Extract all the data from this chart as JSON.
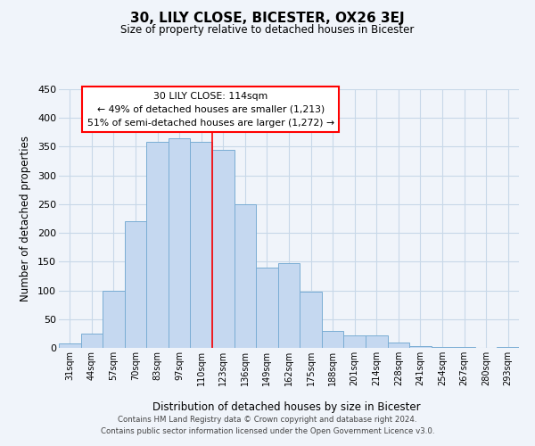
{
  "title": "30, LILY CLOSE, BICESTER, OX26 3EJ",
  "subtitle": "Size of property relative to detached houses in Bicester",
  "xlabel": "Distribution of detached houses by size in Bicester",
  "ylabel": "Number of detached properties",
  "bin_labels": [
    "31sqm",
    "44sqm",
    "57sqm",
    "70sqm",
    "83sqm",
    "97sqm",
    "110sqm",
    "123sqm",
    "136sqm",
    "149sqm",
    "162sqm",
    "175sqm",
    "188sqm",
    "201sqm",
    "214sqm",
    "228sqm",
    "241sqm",
    "254sqm",
    "267sqm",
    "280sqm",
    "293sqm"
  ],
  "bar_values": [
    8,
    25,
    100,
    220,
    358,
    365,
    358,
    345,
    250,
    140,
    148,
    97,
    30,
    22,
    22,
    10,
    3,
    1,
    1,
    0,
    2
  ],
  "bar_color": "#c5d8f0",
  "bar_edge_color": "#7aadd4",
  "reference_line_bin_index": 6,
  "reference_line_label": "30 LILY CLOSE: 114sqm",
  "annotation_line1": "← 49% of detached houses are smaller (1,213)",
  "annotation_line2": "51% of semi-detached houses are larger (1,272) →",
  "ylim": [
    0,
    450
  ],
  "yticks": [
    0,
    50,
    100,
    150,
    200,
    250,
    300,
    350,
    400,
    450
  ],
  "footer_line1": "Contains HM Land Registry data © Crown copyright and database right 2024.",
  "footer_line2": "Contains public sector information licensed under the Open Government Licence v3.0.",
  "background_color": "#f0f4fa",
  "grid_color": "#c8d8e8"
}
